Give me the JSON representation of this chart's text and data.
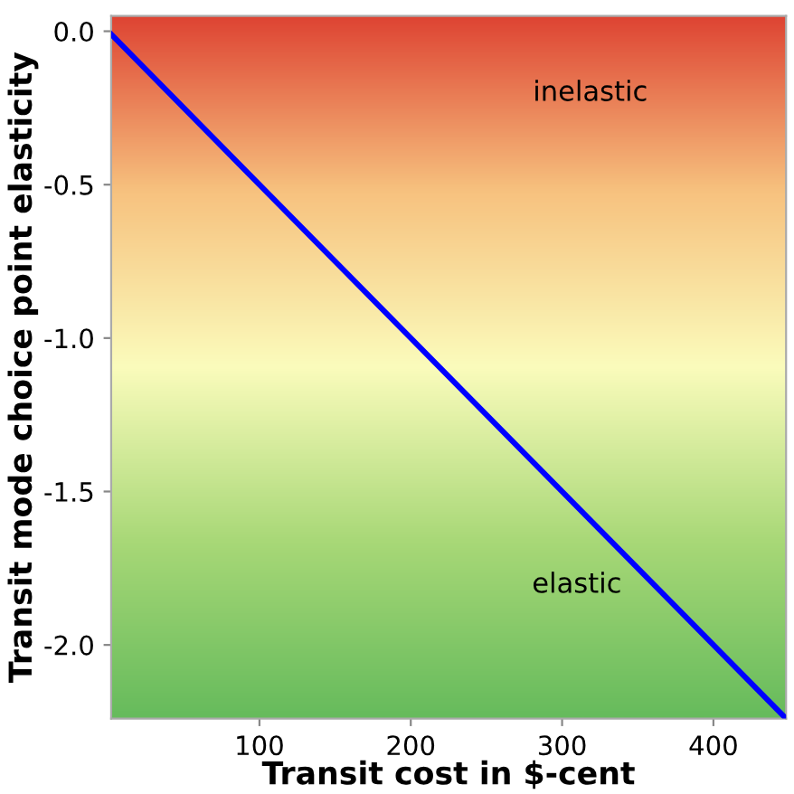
{
  "chart_data": {
    "type": "line",
    "xlabel": "Transit cost in $-cent",
    "ylabel": "Transit mode choice point elasticity",
    "x": [
      2,
      447
    ],
    "series": [
      {
        "color": "#0000ff",
        "values": [
          -0.01,
          -2.235
        ]
      }
    ],
    "xlim": [
      2,
      448
    ],
    "ylim": [
      -2.24,
      0.05
    ],
    "xticks": [
      100,
      200,
      300,
      400
    ],
    "yticks": [
      {
        "value": 0,
        "label": "0.0"
      },
      -0.5,
      {
        "value": -1,
        "label": "-1.0"
      },
      -1.5,
      {
        "value": -2,
        "label": "-2.0"
      }
    ],
    "annotations": [
      "inelastic",
      "elastic"
    ],
    "grid": false,
    "legend": false
  }
}
